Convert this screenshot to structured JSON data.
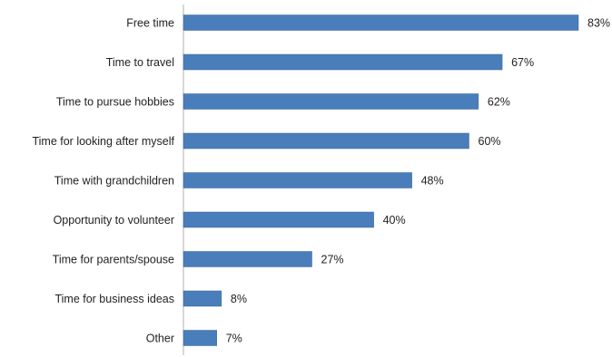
{
  "chart_data": {
    "type": "bar",
    "orientation": "horizontal",
    "categories": [
      "Free time",
      "Time to travel",
      "Time to pursue hobbies",
      "Time for looking after myself",
      "Time with grandchildren",
      "Opportunity to volunteer",
      "Time for parents/spouse",
      "Time for business ideas",
      "Other"
    ],
    "values": [
      83,
      67,
      62,
      60,
      48,
      40,
      27,
      8,
      7
    ],
    "value_labels": [
      "83%",
      "67%",
      "62%",
      "60%",
      "48%",
      "40%",
      "27%",
      "8%",
      "7%"
    ],
    "unit": "%",
    "xlim": [
      0,
      100
    ],
    "grid": false,
    "legend": "none",
    "colors": {
      "bar": "#4a7ebb",
      "bar_edge": "#3b679e",
      "axis": "#b0b0b0",
      "text": "#222222"
    }
  }
}
